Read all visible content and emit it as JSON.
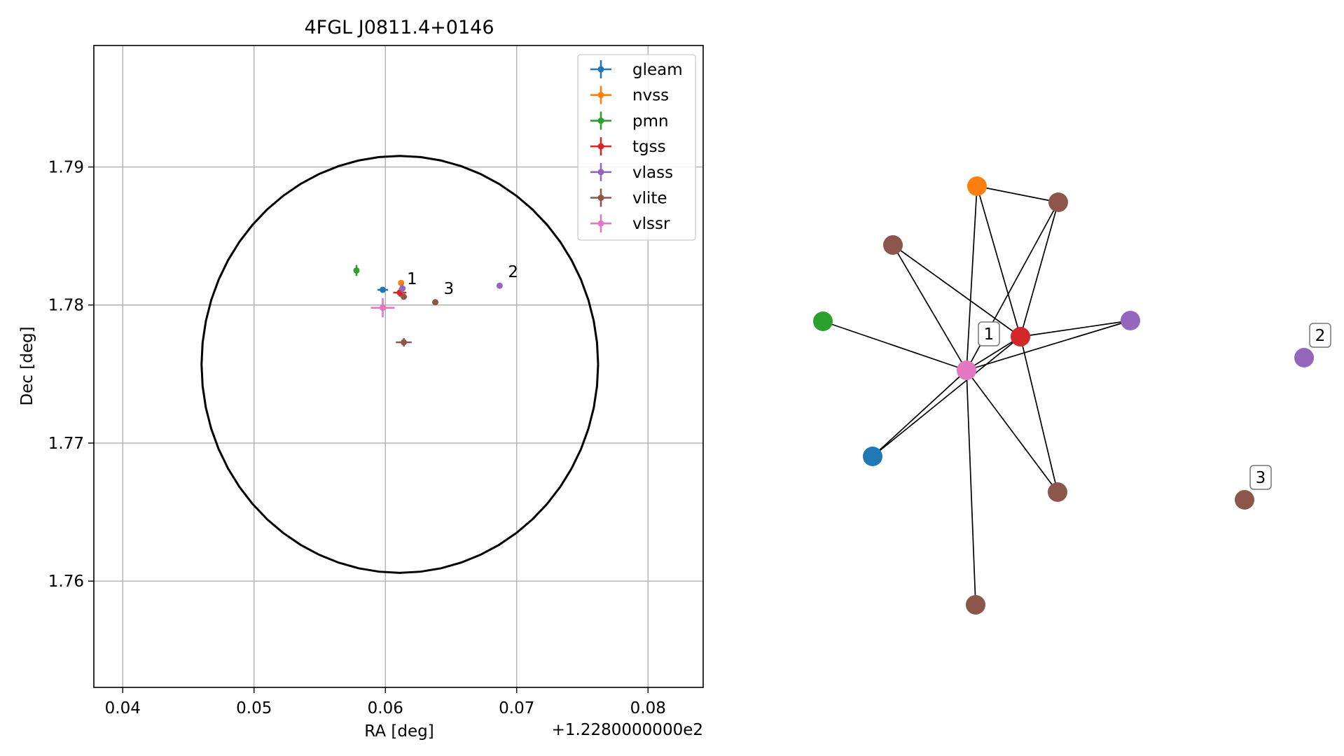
{
  "chart_data": [
    {
      "type": "scatter",
      "title": "4FGL J0811.4+0146",
      "xlabel": "RA [deg]",
      "ylabel": "Dec [deg]",
      "x_offset_label": "+1.2280000000e2",
      "xlim": [
        0.0378,
        0.0842
      ],
      "ylim": [
        1.7523,
        1.7988
      ],
      "x_ticks": [
        0.04,
        0.05,
        0.06,
        0.07,
        0.08
      ],
      "x_tick_labels": [
        "0.04",
        "0.05",
        "0.06",
        "0.07",
        "0.08"
      ],
      "y_ticks": [
        1.76,
        1.77,
        1.78,
        1.79
      ],
      "y_tick_labels": [
        "1.76",
        "1.77",
        "1.78",
        "1.79"
      ],
      "grid": true,
      "legend_position": "top-right",
      "circle": {
        "center": [
          0.0611,
          1.7757
        ],
        "radius": 0.0151,
        "color": "#000000"
      },
      "series": [
        {
          "name": "gleam",
          "color": "#1f77b4",
          "points": [
            {
              "x": 0.0598,
              "y": 1.7811,
              "xerr": 0.0004,
              "yerr": 0.0002
            }
          ]
        },
        {
          "name": "nvss",
          "color": "#ff7f0e",
          "points": [
            {
              "x": 0.0612,
              "y": 1.7816,
              "xerr": 0.0001,
              "yerr": 0.0002
            }
          ]
        },
        {
          "name": "pmn",
          "color": "#2ca02c",
          "points": [
            {
              "x": 0.0578,
              "y": 1.7825,
              "xerr": 0.0001,
              "yerr": 0.0004
            }
          ]
        },
        {
          "name": "tgss",
          "color": "#d62728",
          "points": [
            {
              "x": 0.0611,
              "y": 1.7809,
              "xerr": 0.0005,
              "yerr": 0.0003
            }
          ]
        },
        {
          "name": "vlass",
          "color": "#9467bd",
          "points": [
            {
              "x": 0.0613,
              "y": 1.7812,
              "xerr": 0.0002,
              "yerr": 0.0003
            },
            {
              "x": 0.0687,
              "y": 1.7814,
              "xerr": 0.0,
              "yerr": 0.0
            }
          ]
        },
        {
          "name": "vlite",
          "color": "#8c564b",
          "points": [
            {
              "x": 0.0614,
              "y": 1.7806,
              "xerr": 0.0,
              "yerr": 0.0
            },
            {
              "x": 0.0614,
              "y": 1.7773,
              "xerr": 0.0006,
              "yerr": 0.0003
            },
            {
              "x": 0.0638,
              "y": 1.7802,
              "xerr": 0.0,
              "yerr": 0.0
            }
          ]
        },
        {
          "name": "vlssr",
          "color": "#e377c2",
          "points": [
            {
              "x": 0.0598,
              "y": 1.7798,
              "xerr": 0.0009,
              "yerr": 0.0007
            }
          ]
        }
      ],
      "annotations": [
        {
          "text": "1",
          "x": 0.061,
          "y": 1.7813
        },
        {
          "text": "2",
          "x": 0.0687,
          "y": 1.7818
        },
        {
          "text": "3",
          "x": 0.0638,
          "y": 1.7806
        }
      ]
    },
    {
      "type": "network",
      "nodes": [
        {
          "id": "n-orange",
          "color": "#ff7f0e"
        },
        {
          "id": "n-brown-topright",
          "color": "#8c564b"
        },
        {
          "id": "n-brown-topleft",
          "color": "#8c564b"
        },
        {
          "id": "n-green",
          "color": "#2ca02c"
        },
        {
          "id": "n-red",
          "color": "#d62728"
        },
        {
          "id": "n-purple",
          "color": "#9467bd"
        },
        {
          "id": "n-pink",
          "color": "#e377c2"
        },
        {
          "id": "n-blue",
          "color": "#1f77b4"
        },
        {
          "id": "n-brown-lowright",
          "color": "#8c564b"
        },
        {
          "id": "n-brown-bottom",
          "color": "#8c564b"
        },
        {
          "id": "n-purple-2",
          "color": "#9467bd"
        },
        {
          "id": "n-brown-3",
          "color": "#8c564b"
        }
      ],
      "edges": [
        [
          "n-orange",
          "n-brown-topright"
        ],
        [
          "n-orange",
          "n-pink"
        ],
        [
          "n-orange",
          "n-red"
        ],
        [
          "n-brown-topright",
          "n-pink"
        ],
        [
          "n-brown-topright",
          "n-red"
        ],
        [
          "n-brown-topleft",
          "n-pink"
        ],
        [
          "n-brown-topleft",
          "n-red"
        ],
        [
          "n-green",
          "n-pink"
        ],
        [
          "n-red",
          "n-pink"
        ],
        [
          "n-red",
          "n-purple"
        ],
        [
          "n-red",
          "n-brown-lowright"
        ],
        [
          "n-red",
          "n-blue"
        ],
        [
          "n-purple",
          "n-pink"
        ],
        [
          "n-pink",
          "n-blue"
        ],
        [
          "n-pink",
          "n-brown-lowright"
        ],
        [
          "n-pink",
          "n-brown-bottom"
        ]
      ],
      "labels": [
        {
          "text": "1",
          "node": "n-red"
        },
        {
          "text": "2",
          "node": "n-purple-2"
        },
        {
          "text": "3",
          "node": "n-brown-3"
        }
      ]
    }
  ]
}
